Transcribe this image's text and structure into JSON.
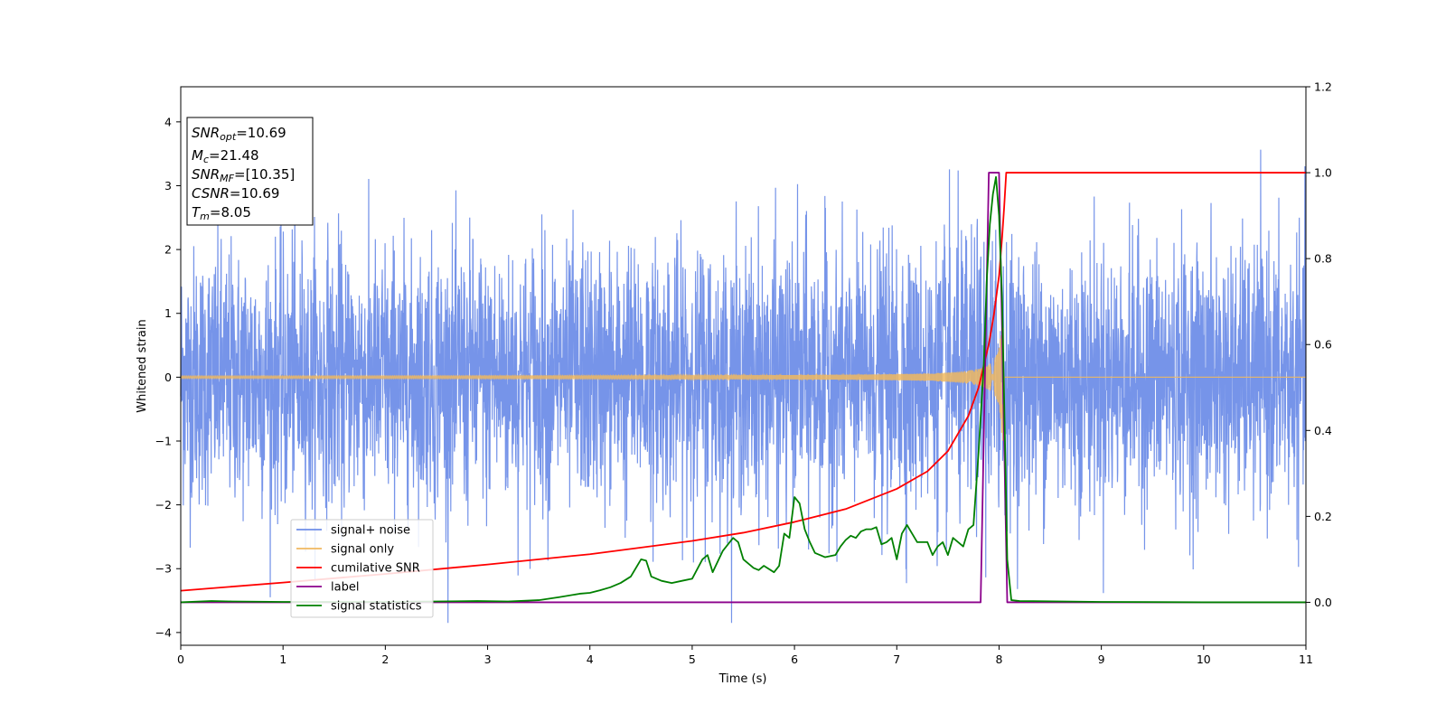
{
  "chart_data": {
    "type": "line",
    "xlabel": "Time (s)",
    "ylabel": "Whitened strain",
    "xlim": [
      0,
      11
    ],
    "ylim": [
      -4.2,
      4.55
    ],
    "ylim_right": [
      -0.1,
      1.2
    ],
    "x_ticks": [
      "0",
      "1",
      "2",
      "3",
      "4",
      "5",
      "6",
      "7",
      "8",
      "9",
      "10",
      "11"
    ],
    "y_ticks": [
      "−4",
      "−3",
      "−2",
      "−1",
      "0",
      "1",
      "2",
      "3",
      "4"
    ],
    "y_right_ticks": [
      "0.0",
      "0.2",
      "0.4",
      "0.6",
      "0.8",
      "1.0",
      "1.2"
    ],
    "grid": false,
    "legend_position": "lower-left",
    "info_box": {
      "lines": [
        {
          "sym": "SNR",
          "sub": "opt",
          "val": "=10.69"
        },
        {
          "sym": "M",
          "sub": "c",
          "val": "=21.48"
        },
        {
          "sym": "SNR",
          "sub": "MF",
          "val": "=[10.35]"
        },
        {
          "sym": "CSNR",
          "sub": "",
          "val": "=10.69"
        },
        {
          "sym": "T",
          "sub": "m",
          "val": "=8.05"
        }
      ]
    },
    "series": [
      {
        "name": "signal+ noise",
        "color": "#6f8ee8",
        "axis": "left",
        "kind": "noise",
        "sigma": 1.0,
        "merger_time": 8.05
      },
      {
        "name": "signal only",
        "color": "#f0b860",
        "axis": "left",
        "kind": "chirp",
        "merger_time": 8.05,
        "peak_amplitude": 1.0
      },
      {
        "name": "cumilative SNR",
        "color": "#ff0000",
        "axis": "right",
        "x": [
          0,
          1,
          2,
          3,
          4,
          5,
          5.5,
          6,
          6.5,
          7,
          7.3,
          7.5,
          7.7,
          7.8,
          7.9,
          7.95,
          8.0,
          8.03,
          8.05,
          8.07,
          11
        ],
        "y": [
          0.027,
          0.046,
          0.066,
          0.088,
          0.112,
          0.143,
          0.162,
          0.187,
          0.217,
          0.264,
          0.305,
          0.352,
          0.434,
          0.5,
          0.601,
          0.67,
          0.76,
          0.85,
          0.92,
          1.0,
          1.0
        ]
      },
      {
        "name": "label",
        "color": "#8b008b",
        "axis": "right",
        "x": [
          0,
          7.82,
          7.9,
          8.0,
          8.08,
          11
        ],
        "y": [
          0,
          0,
          1,
          1,
          0,
          0
        ]
      },
      {
        "name": "signal statistics",
        "color": "#008000",
        "axis": "right",
        "x": [
          0,
          0.3,
          0.5,
          1.0,
          1.5,
          2.0,
          2.5,
          2.9,
          3.2,
          3.5,
          3.7,
          3.9,
          4.0,
          4.1,
          4.2,
          4.3,
          4.4,
          4.5,
          4.55,
          4.6,
          4.7,
          4.8,
          4.9,
          5.0,
          5.1,
          5.15,
          5.2,
          5.3,
          5.4,
          5.45,
          5.5,
          5.6,
          5.65,
          5.7,
          5.8,
          5.85,
          5.9,
          5.95,
          6.0,
          6.05,
          6.1,
          6.15,
          6.2,
          6.3,
          6.4,
          6.45,
          6.5,
          6.55,
          6.6,
          6.65,
          6.7,
          6.75,
          6.8,
          6.85,
          6.9,
          6.95,
          7.0,
          7.05,
          7.1,
          7.15,
          7.2,
          7.3,
          7.35,
          7.4,
          7.45,
          7.5,
          7.55,
          7.6,
          7.65,
          7.7,
          7.75,
          7.8,
          7.85,
          7.88,
          7.91,
          7.94,
          7.97,
          8.0,
          8.03,
          8.06,
          8.08,
          8.12,
          8.2,
          9,
          10,
          11
        ],
        "y": [
          0,
          0.003,
          0.002,
          0.001,
          0.001,
          0.001,
          0.002,
          0.003,
          0.002,
          0.005,
          0.012,
          0.02,
          0.022,
          0.028,
          0.035,
          0.045,
          0.06,
          0.1,
          0.097,
          0.06,
          0.05,
          0.045,
          0.05,
          0.055,
          0.1,
          0.11,
          0.07,
          0.12,
          0.15,
          0.14,
          0.1,
          0.08,
          0.075,
          0.085,
          0.07,
          0.085,
          0.16,
          0.15,
          0.245,
          0.23,
          0.17,
          0.14,
          0.115,
          0.105,
          0.11,
          0.13,
          0.145,
          0.155,
          0.15,
          0.165,
          0.17,
          0.17,
          0.175,
          0.135,
          0.14,
          0.15,
          0.1,
          0.16,
          0.18,
          0.16,
          0.14,
          0.14,
          0.11,
          0.13,
          0.14,
          0.11,
          0.15,
          0.14,
          0.13,
          0.17,
          0.18,
          0.35,
          0.55,
          0.75,
          0.88,
          0.95,
          0.99,
          0.9,
          0.7,
          0.35,
          0.1,
          0.005,
          0.003,
          0.001,
          0.0,
          0.0
        ]
      }
    ]
  }
}
